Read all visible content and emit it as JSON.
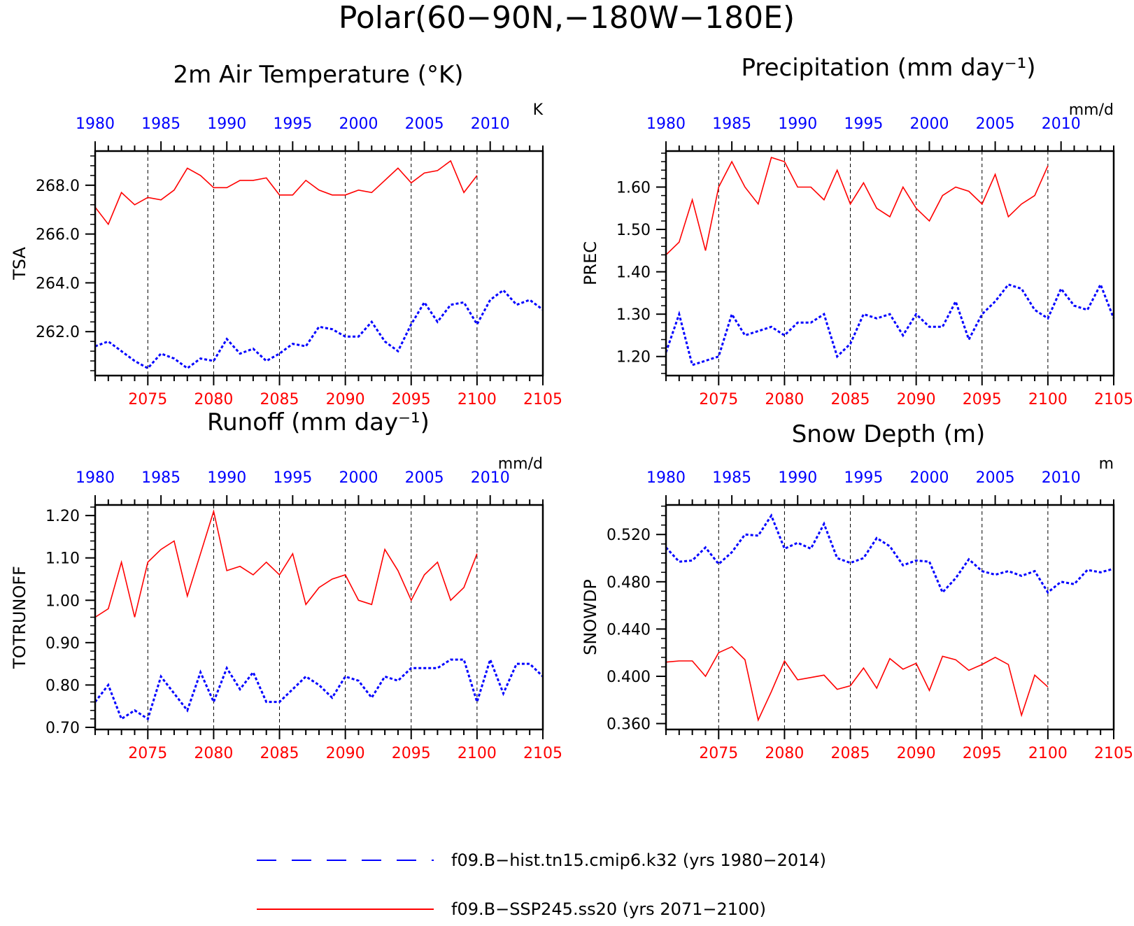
{
  "page_title": "Polar(60−90N,−180W−180E)",
  "legend": [
    {
      "label": "f09.B−hist.tn15.cmip6.k32 (yrs 1980−2014)",
      "color": "#0000ff",
      "style": "dashed"
    },
    {
      "label": "f09.B−SSP245.ss20 (yrs 2071−2100)",
      "color": "#ff0000",
      "style": "solid"
    }
  ],
  "colors": {
    "hist": "#0000ff",
    "ssp": "#ff0000",
    "axis": "#000000"
  },
  "chart_data": [
    {
      "type": "line",
      "title": "2m Air Temperature (°K)",
      "units": "K",
      "ylabel": "TSA",
      "ylim": [
        260.2,
        269.4
      ],
      "yticks": [
        262.0,
        264.0,
        266.0,
        268.0
      ],
      "ytick_labels": [
        "262.0",
        "264.0",
        "266.0",
        "268.0"
      ],
      "grid": "vertical dashed at bottom-axis major ticks",
      "x_bottom": {
        "range": [
          2071,
          2105
        ],
        "ticks": [
          2075,
          2080,
          2085,
          2090,
          2095,
          2100,
          2105
        ]
      },
      "x_top": {
        "range": [
          1980,
          2014
        ],
        "ticks": [
          1980,
          1985,
          1990,
          1995,
          2000,
          2005,
          2010
        ]
      },
      "series": [
        {
          "name": "f09.B−hist.tn15.cmip6.k32 (yrs 1980−2014)",
          "years": [
            1980,
            1981,
            1982,
            1983,
            1984,
            1985,
            1986,
            1987,
            1988,
            1989,
            1990,
            1991,
            1992,
            1993,
            1994,
            1995,
            1996,
            1997,
            1998,
            1999,
            2000,
            2001,
            2002,
            2003,
            2004,
            2005,
            2006,
            2007,
            2008,
            2009,
            2010,
            2011,
            2012,
            2013,
            2014
          ],
          "values": [
            261.4,
            261.6,
            261.2,
            260.8,
            260.5,
            261.1,
            260.9,
            260.5,
            260.9,
            260.8,
            261.7,
            261.1,
            261.3,
            260.8,
            261.1,
            261.5,
            261.4,
            262.2,
            262.1,
            261.8,
            261.8,
            262.4,
            261.6,
            261.2,
            262.3,
            263.2,
            262.4,
            263.1,
            263.2,
            262.3,
            263.3,
            263.7,
            263.1,
            263.3,
            262.9
          ]
        },
        {
          "name": "f09.B−SSP245.ss20 (yrs 2071−2100)",
          "years": [
            2071,
            2072,
            2073,
            2074,
            2075,
            2076,
            2077,
            2078,
            2079,
            2080,
            2081,
            2082,
            2083,
            2084,
            2085,
            2086,
            2087,
            2088,
            2089,
            2090,
            2091,
            2092,
            2093,
            2094,
            2095,
            2096,
            2097,
            2098,
            2099,
            2100
          ],
          "values": [
            267.1,
            266.4,
            267.7,
            267.2,
            267.5,
            267.4,
            267.8,
            268.7,
            268.4,
            267.9,
            267.9,
            268.2,
            268.2,
            268.3,
            267.6,
            267.6,
            268.2,
            267.8,
            267.6,
            267.6,
            267.8,
            267.7,
            268.2,
            268.7,
            268.1,
            268.5,
            268.6,
            269.0,
            267.7,
            268.4
          ]
        }
      ]
    },
    {
      "type": "line",
      "title": "Precipitation (mm day⁻¹)",
      "units": "mm/d",
      "ylabel": "PREC",
      "ylim": [
        1.155,
        1.685
      ],
      "yticks": [
        1.2,
        1.3,
        1.4,
        1.5,
        1.6
      ],
      "ytick_labels": [
        "1.20",
        "1.30",
        "1.40",
        "1.50",
        "1.60"
      ],
      "grid": "vertical dashed at bottom-axis major ticks",
      "x_bottom": {
        "range": [
          2071,
          2105
        ],
        "ticks": [
          2075,
          2080,
          2085,
          2090,
          2095,
          2100,
          2105
        ]
      },
      "x_top": {
        "range": [
          1980,
          2014
        ],
        "ticks": [
          1980,
          1985,
          1990,
          1995,
          2000,
          2005,
          2010
        ]
      },
      "series": [
        {
          "name": "f09.B−hist.tn15.cmip6.k32 (yrs 1980−2014)",
          "years": [
            1980,
            1981,
            1982,
            1983,
            1984,
            1985,
            1986,
            1987,
            1988,
            1989,
            1990,
            1991,
            1992,
            1993,
            1994,
            1995,
            1996,
            1997,
            1998,
            1999,
            2000,
            2001,
            2002,
            2003,
            2004,
            2005,
            2006,
            2007,
            2008,
            2009,
            2010,
            2011,
            2012,
            2013,
            2014
          ],
          "values": [
            1.21,
            1.3,
            1.18,
            1.19,
            1.2,
            1.3,
            1.25,
            1.26,
            1.27,
            1.25,
            1.28,
            1.28,
            1.3,
            1.2,
            1.23,
            1.3,
            1.29,
            1.3,
            1.25,
            1.3,
            1.27,
            1.27,
            1.33,
            1.24,
            1.3,
            1.33,
            1.37,
            1.36,
            1.31,
            1.29,
            1.36,
            1.32,
            1.31,
            1.37,
            1.29
          ]
        },
        {
          "name": "f09.B−SSP245.ss20 (yrs 2071−2100)",
          "years": [
            2071,
            2072,
            2073,
            2074,
            2075,
            2076,
            2077,
            2078,
            2079,
            2080,
            2081,
            2082,
            2083,
            2084,
            2085,
            2086,
            2087,
            2088,
            2089,
            2090,
            2091,
            2092,
            2093,
            2094,
            2095,
            2096,
            2097,
            2098,
            2099,
            2100
          ],
          "values": [
            1.44,
            1.47,
            1.57,
            1.45,
            1.6,
            1.66,
            1.6,
            1.56,
            1.67,
            1.66,
            1.6,
            1.6,
            1.57,
            1.64,
            1.56,
            1.61,
            1.55,
            1.53,
            1.6,
            1.55,
            1.52,
            1.58,
            1.6,
            1.59,
            1.56,
            1.63,
            1.53,
            1.56,
            1.58,
            1.65
          ]
        }
      ]
    },
    {
      "type": "line",
      "title": "Runoff (mm day⁻¹)",
      "units": "mm/d",
      "ylabel": "TOTRUNOFF",
      "ylim": [
        0.695,
        1.225
      ],
      "yticks": [
        0.7,
        0.8,
        0.9,
        1.0,
        1.1,
        1.2
      ],
      "ytick_labels": [
        "0.70",
        "0.80",
        "0.90",
        "1.00",
        "1.10",
        "1.20"
      ],
      "grid": "vertical dashed at bottom-axis major ticks",
      "x_bottom": {
        "range": [
          2071,
          2105
        ],
        "ticks": [
          2075,
          2080,
          2085,
          2090,
          2095,
          2100,
          2105
        ]
      },
      "x_top": {
        "range": [
          1980,
          2014
        ],
        "ticks": [
          1980,
          1985,
          1990,
          1995,
          2000,
          2005,
          2010
        ]
      },
      "series": [
        {
          "name": "f09.B−hist.tn15.cmip6.k32 (yrs 1980−2014)",
          "years": [
            1980,
            1981,
            1982,
            1983,
            1984,
            1985,
            1986,
            1987,
            1988,
            1989,
            1990,
            1991,
            1992,
            1993,
            1994,
            1995,
            1996,
            1997,
            1998,
            1999,
            2000,
            2001,
            2002,
            2003,
            2004,
            2005,
            2006,
            2007,
            2008,
            2009,
            2010,
            2011,
            2012,
            2013,
            2014
          ],
          "values": [
            0.76,
            0.8,
            0.72,
            0.74,
            0.72,
            0.82,
            0.78,
            0.74,
            0.83,
            0.76,
            0.84,
            0.79,
            0.83,
            0.76,
            0.76,
            0.79,
            0.82,
            0.8,
            0.77,
            0.82,
            0.81,
            0.77,
            0.82,
            0.81,
            0.84,
            0.84,
            0.84,
            0.86,
            0.86,
            0.76,
            0.86,
            0.78,
            0.85,
            0.85,
            0.82
          ]
        },
        {
          "name": "f09.B−SSP245.ss20 (yrs 2071−2100)",
          "years": [
            2071,
            2072,
            2073,
            2074,
            2075,
            2076,
            2077,
            2078,
            2079,
            2080,
            2081,
            2082,
            2083,
            2084,
            2085,
            2086,
            2087,
            2088,
            2089,
            2090,
            2091,
            2092,
            2093,
            2094,
            2095,
            2096,
            2097,
            2098,
            2099,
            2100
          ],
          "values": [
            0.96,
            0.98,
            1.09,
            0.96,
            1.09,
            1.12,
            1.14,
            1.01,
            1.11,
            1.21,
            1.07,
            1.08,
            1.06,
            1.09,
            1.06,
            1.11,
            0.99,
            1.03,
            1.05,
            1.06,
            1.0,
            0.99,
            1.12,
            1.07,
            1.0,
            1.06,
            1.09,
            1.0,
            1.03,
            1.11
          ]
        }
      ]
    },
    {
      "type": "line",
      "title": "Snow Depth (m)",
      "units": "m",
      "ylabel": "SNOWDP",
      "ylim": [
        0.355,
        0.545
      ],
      "yticks": [
        0.36,
        0.4,
        0.44,
        0.48,
        0.52
      ],
      "ytick_labels": [
        "0.360",
        "0.400",
        "0.440",
        "0.480",
        "0.520"
      ],
      "grid": "vertical dashed at bottom-axis major ticks",
      "x_bottom": {
        "range": [
          2071,
          2105
        ],
        "ticks": [
          2075,
          2080,
          2085,
          2090,
          2095,
          2100,
          2105
        ]
      },
      "x_top": {
        "range": [
          1980,
          2014
        ],
        "ticks": [
          1980,
          1985,
          1990,
          1995,
          2000,
          2005,
          2010
        ]
      },
      "series": [
        {
          "name": "f09.B−hist.tn15.cmip6.k32 (yrs 1980−2014)",
          "years": [
            1980,
            1981,
            1982,
            1983,
            1984,
            1985,
            1986,
            1987,
            1988,
            1989,
            1990,
            1991,
            1992,
            1993,
            1994,
            1995,
            1996,
            1997,
            1998,
            1999,
            2000,
            2001,
            2002,
            2003,
            2004,
            2005,
            2006,
            2007,
            2008,
            2009,
            2010,
            2011,
            2012,
            2013,
            2014
          ],
          "values": [
            0.509,
            0.497,
            0.498,
            0.509,
            0.495,
            0.505,
            0.52,
            0.519,
            0.536,
            0.508,
            0.513,
            0.508,
            0.529,
            0.5,
            0.496,
            0.5,
            0.517,
            0.51,
            0.494,
            0.498,
            0.497,
            0.471,
            0.483,
            0.499,
            0.489,
            0.486,
            0.489,
            0.485,
            0.489,
            0.471,
            0.48,
            0.478,
            0.49,
            0.488,
            0.491
          ]
        },
        {
          "name": "f09.B−SSP245.ss20 (yrs 2071−2100)",
          "years": [
            2071,
            2072,
            2073,
            2074,
            2075,
            2076,
            2077,
            2078,
            2079,
            2080,
            2081,
            2082,
            2083,
            2084,
            2085,
            2086,
            2087,
            2088,
            2089,
            2090,
            2091,
            2092,
            2093,
            2094,
            2095,
            2096,
            2097,
            2098,
            2099,
            2100
          ],
          "values": [
            0.412,
            0.413,
            0.413,
            0.4,
            0.42,
            0.425,
            0.414,
            0.363,
            0.387,
            0.413,
            0.397,
            0.399,
            0.401,
            0.389,
            0.392,
            0.407,
            0.39,
            0.415,
            0.406,
            0.411,
            0.388,
            0.417,
            0.414,
            0.405,
            0.41,
            0.416,
            0.41,
            0.367,
            0.401,
            0.391
          ]
        }
      ]
    }
  ]
}
